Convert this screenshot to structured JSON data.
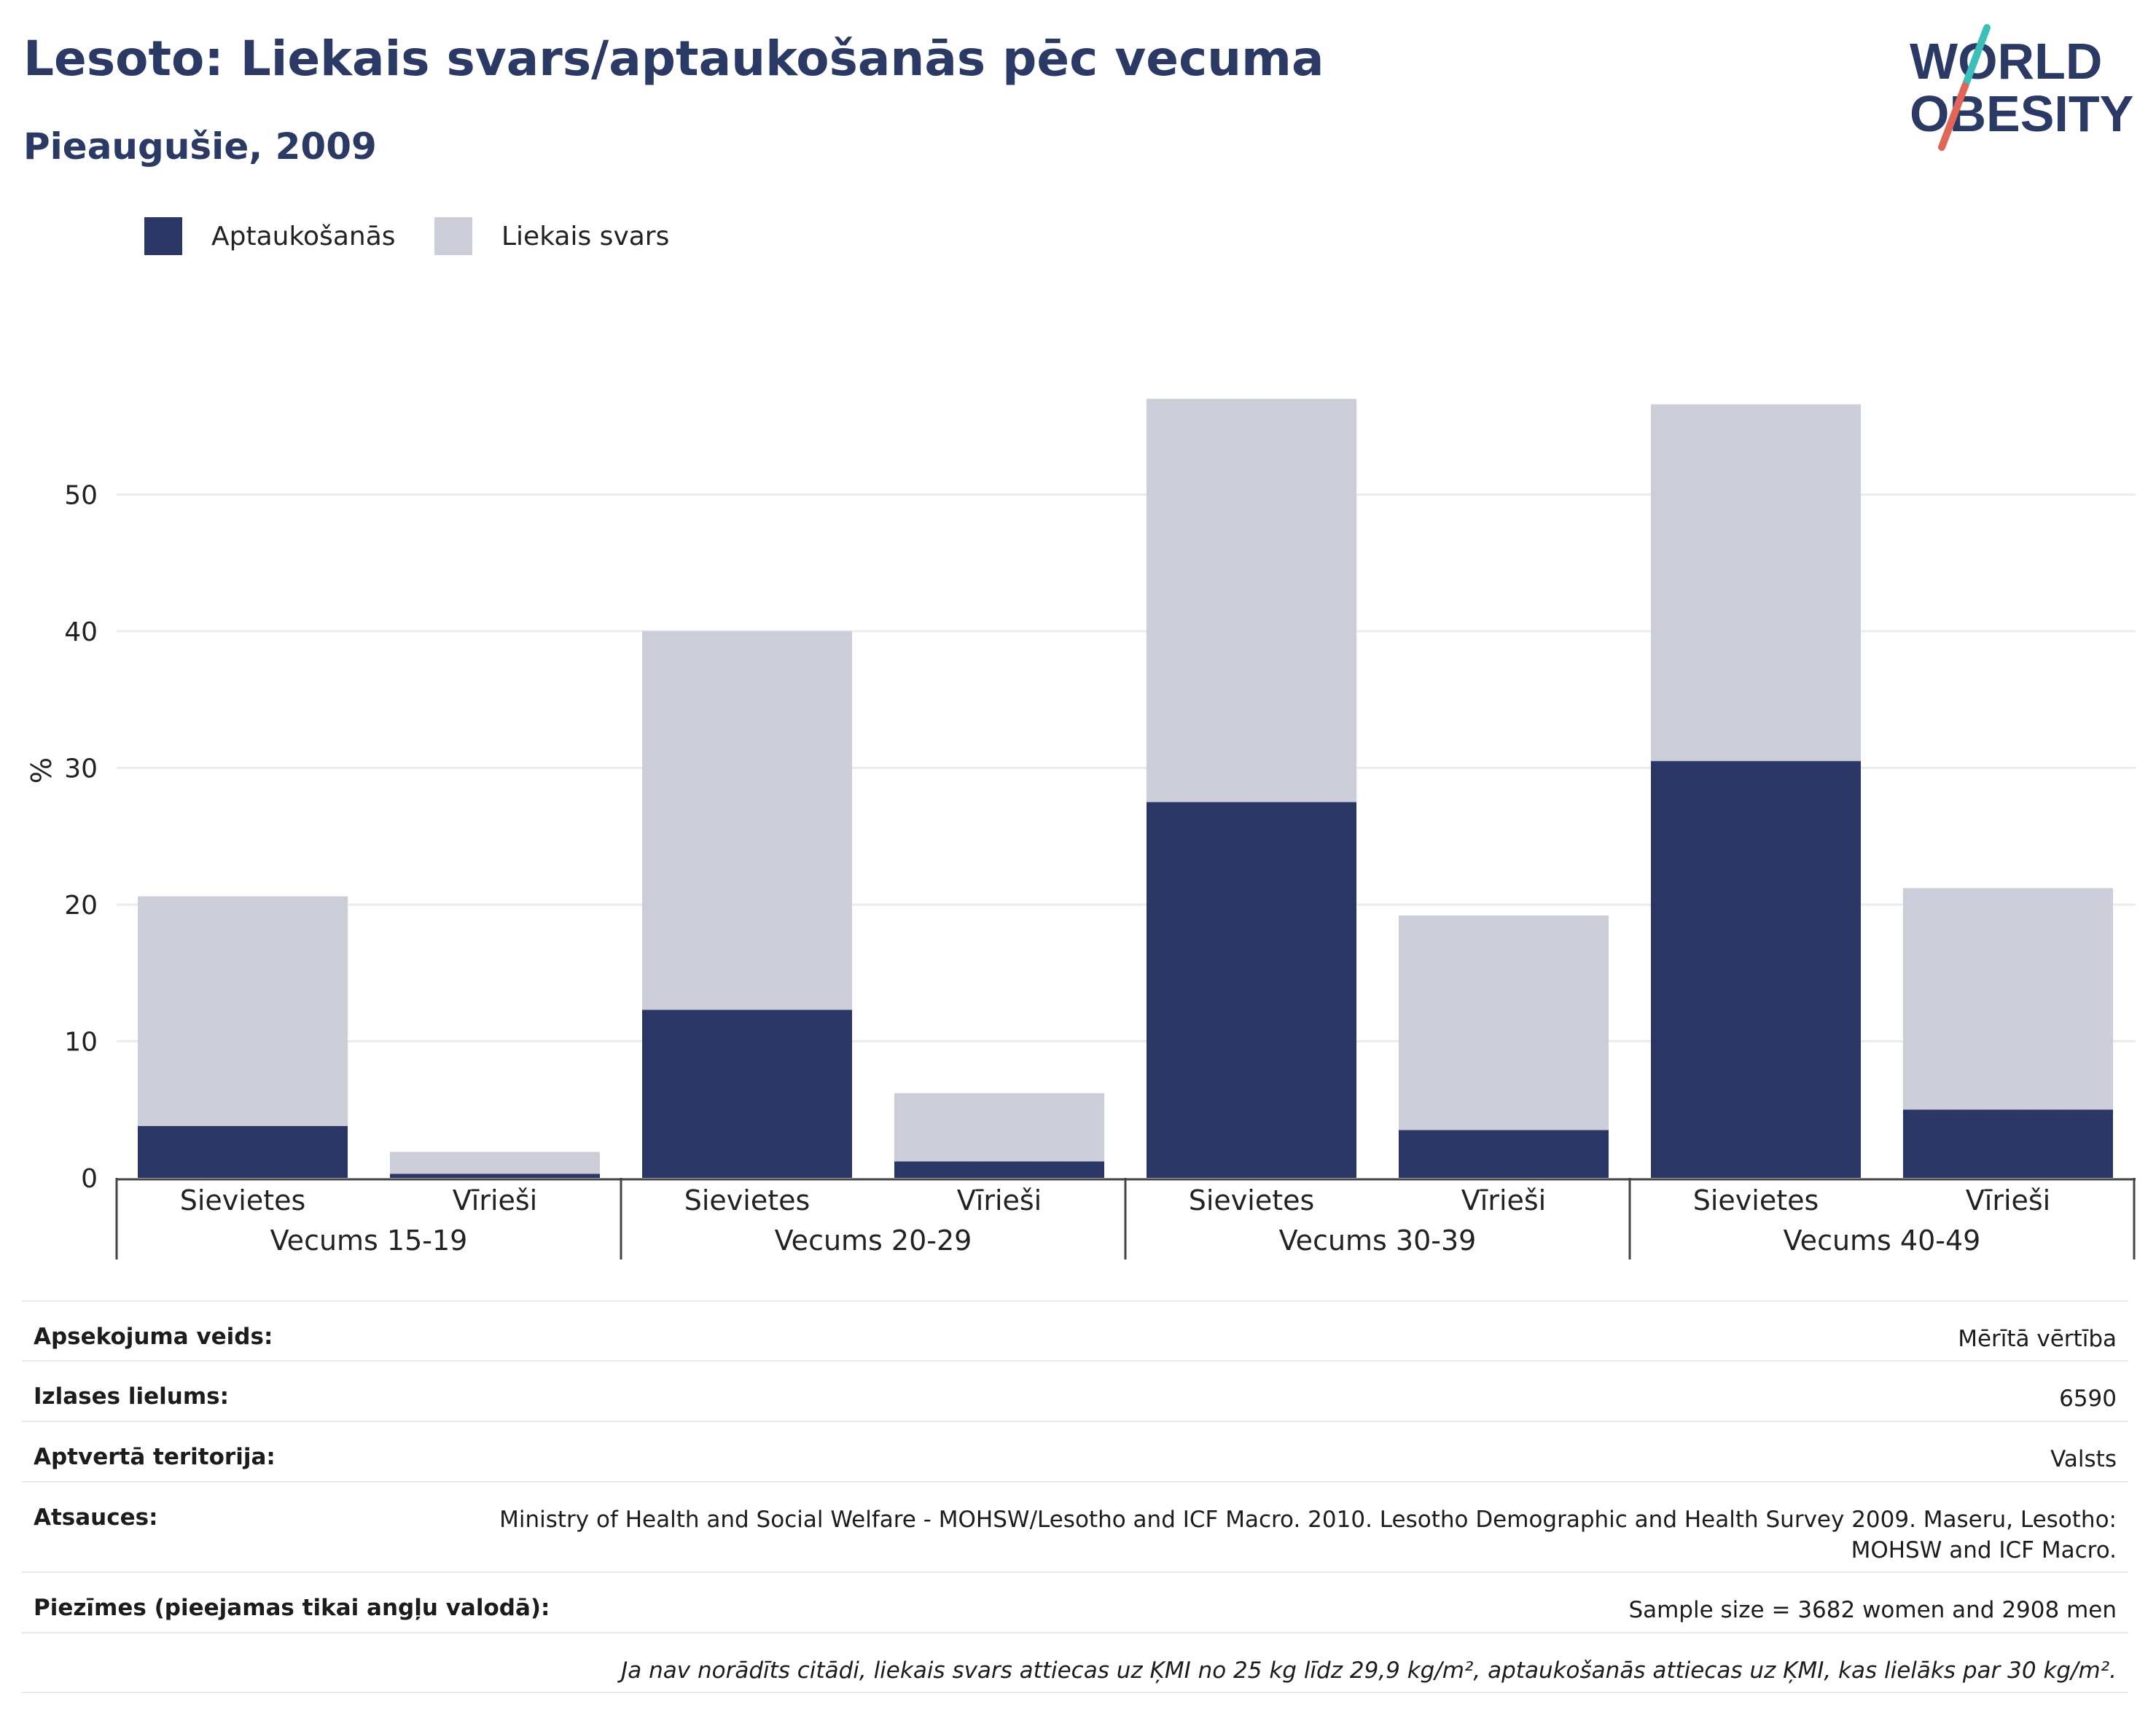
{
  "header": {
    "title": "Lesoto: Liekais svars/aptaukošanās pēc vecuma",
    "subtitle": "Pieaugušie, 2009"
  },
  "logo": {
    "line1": "WORLD",
    "line2": "OBESITY",
    "colors": {
      "text": "#2a3a64",
      "slash_top": "#3cbfb8",
      "slash_bottom": "#e0665a"
    }
  },
  "colors": {
    "obesity": "#2a3663",
    "overweight": "#cbcdd9",
    "grid": "#e9ebf1",
    "axis": "#444444",
    "title": "#2a3a64"
  },
  "chart_data": {
    "type": "bar",
    "stacked": true,
    "title": "",
    "xlabel": "",
    "ylabel": "%",
    "ylim": [
      0,
      60
    ],
    "yticks": [
      0,
      10,
      20,
      30,
      40,
      50
    ],
    "grid": true,
    "legend_position": "top-left",
    "groups": [
      "Vecums 15-19",
      "Vecums 20-29",
      "Vecums 30-39",
      "Vecums 40-49"
    ],
    "categories": [
      "Sievietes",
      "Vīrieši",
      "Sievietes",
      "Vīrieši",
      "Sievietes",
      "Vīrieši",
      "Sievietes",
      "Vīrieši"
    ],
    "category_group": [
      0,
      0,
      1,
      1,
      2,
      2,
      3,
      3
    ],
    "series": [
      {
        "name": "Aptaukošanās",
        "values": [
          3.8,
          0.3,
          12.3,
          1.2,
          27.5,
          3.5,
          30.5,
          5.0
        ]
      },
      {
        "name": "Liekais svars",
        "values": [
          16.8,
          1.6,
          27.7,
          5.0,
          29.5,
          15.7,
          26.1,
          16.2
        ]
      }
    ]
  },
  "info": {
    "rows": [
      {
        "label": "Apsekojuma veids:",
        "value": "Mērītā vērtība"
      },
      {
        "label": "Izlases lielums:",
        "value": "6590"
      },
      {
        "label": "Aptvertā teritorija:",
        "value": "Valsts"
      },
      {
        "label": "Atsauces:",
        "value": "Ministry of Health and Social Welfare - MOHSW/Lesotho and ICF Macro. 2010. Lesotho Demographic and Health Survey 2009. Maseru, Lesotho: MOHSW and ICF Macro."
      },
      {
        "label": "Piezīmes (pieejamas tikai angļu valodā):",
        "value": "Sample size = 3682 women and 2908 men"
      }
    ],
    "footnote": "Ja nav norādīts citādi, liekais svars attiecas uz ĶMI no 25 kg līdz 29,9 kg/m², aptaukošanās attiecas uz ĶMI, kas lielāks par 30 kg/m²."
  }
}
